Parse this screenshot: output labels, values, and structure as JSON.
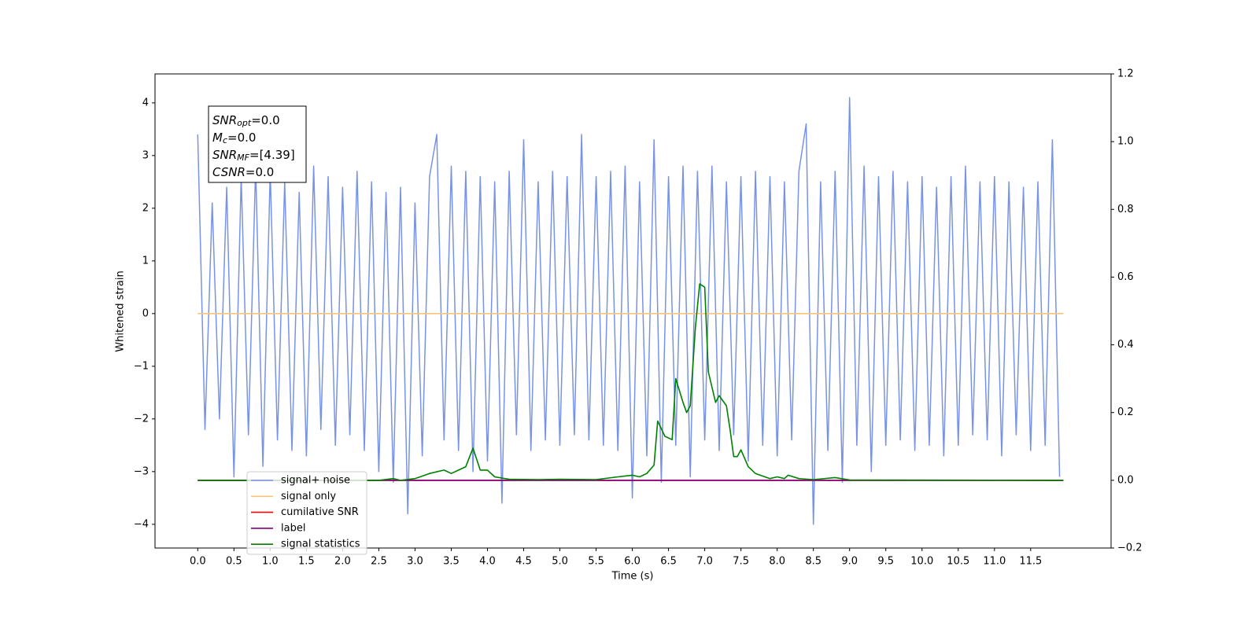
{
  "chart_data": {
    "type": "line",
    "xlabel": "Time (s)",
    "ylabel": "Whitened strain",
    "xlim": [
      -0.59,
      12.61
    ],
    "xticks": [
      {
        "value": 0,
        "label": "0.0"
      },
      0.5,
      {
        "value": 1,
        "label": "1.0"
      },
      1.5,
      {
        "value": 2,
        "label": "2.0"
      },
      2.5,
      {
        "value": 3,
        "label": "3.0"
      },
      3.5,
      {
        "value": 4,
        "label": "4.0"
      },
      4.5,
      {
        "value": 5,
        "label": "5.0"
      },
      5.5,
      {
        "value": 6,
        "label": "6.0"
      },
      6.5,
      {
        "value": 7,
        "label": "7.0"
      },
      7.5,
      {
        "value": 8,
        "label": "8.0"
      },
      8.5,
      {
        "value": 9,
        "label": "9.0"
      },
      9.5,
      {
        "value": 10,
        "label": "10.0"
      },
      10.5,
      {
        "value": 11,
        "label": "11.0"
      },
      11.5
    ],
    "ylim": [
      -4.45,
      4.55
    ],
    "yticks": [
      {
        "value": -4,
        "label": "−4"
      },
      {
        "value": -3,
        "label": "−3"
      },
      {
        "value": -2,
        "label": "−2"
      },
      {
        "value": -1,
        "label": "−1"
      },
      0,
      1,
      2,
      3,
      4
    ],
    "y2lim": [
      -0.2,
      1.2
    ],
    "y2ticks": [
      {
        "value": -0.2,
        "label": "−0.2"
      },
      {
        "value": 0,
        "label": "0.0"
      },
      0.2,
      0.4,
      0.6,
      0.8,
      {
        "value": 1,
        "label": "1.0"
      },
      1.2
    ],
    "legend": "lower left",
    "annotation": [
      {
        "symbol": "SNR",
        "subscript": "opt",
        "text": "=0.0"
      },
      {
        "symbol": "M",
        "subscript": "c",
        "text": "=0.0"
      },
      {
        "symbol": "SNR",
        "subscript": "MF",
        "text": "=[4.39]"
      },
      {
        "symbol": "CSNR",
        "text": "=0.0"
      }
    ],
    "series": [
      {
        "name": "signal+ noise",
        "color": "#7893e6",
        "x": [
          0,
          0.1,
          0.2,
          0.3,
          0.4,
          0.5,
          0.6,
          0.7,
          0.8,
          0.9,
          1,
          1.1,
          1.2,
          1.3,
          1.4,
          1.5,
          1.6,
          1.7,
          1.8,
          1.9,
          2,
          2.1,
          2.2,
          2.3,
          2.4,
          2.5,
          2.6,
          2.7,
          2.8,
          2.9,
          3,
          3.1,
          3.2,
          3.3,
          3.4,
          3.5,
          3.6,
          3.7,
          3.8,
          3.9,
          4,
          4.1,
          4.2,
          4.3,
          4.4,
          4.5,
          4.6,
          4.7,
          4.8,
          4.9,
          5,
          5.1,
          5.2,
          5.3,
          5.4,
          5.5,
          5.6,
          5.7,
          5.8,
          5.9,
          6,
          6.1,
          6.2,
          6.3,
          6.4,
          6.5,
          6.6,
          6.7,
          6.8,
          6.9,
          7,
          7.1,
          7.2,
          7.3,
          7.4,
          7.5,
          7.6,
          7.7,
          7.8,
          7.9,
          8,
          8.1,
          8.2,
          8.3,
          8.4,
          8.5,
          8.6,
          8.7,
          8.8,
          8.9,
          9,
          9.1,
          9.2,
          9.3,
          9.4,
          9.5,
          9.6,
          9.7,
          9.8,
          9.9,
          10,
          10.1,
          10.2,
          10.3,
          10.4,
          10.5,
          10.6,
          10.7,
          10.8,
          10.9,
          11,
          11.1,
          11.2,
          11.3,
          11.4,
          11.5,
          11.6,
          11.7,
          11.8,
          11.9
        ],
        "values": [
          3.4,
          -2.2,
          2.1,
          -2.0,
          2.4,
          -3.1,
          2.6,
          -2.3,
          2.8,
          -2.9,
          2.7,
          -2.4,
          2.5,
          -2.6,
          2.3,
          -2.7,
          2.8,
          -2.2,
          2.6,
          -2.5,
          2.4,
          -2.3,
          2.7,
          -2.6,
          2.5,
          -3.0,
          2.3,
          -3.2,
          2.4,
          -3.8,
          2.1,
          -2.7,
          2.6,
          3.4,
          -2.4,
          2.8,
          -2.6,
          2.7,
          -3.0,
          2.6,
          -2.8,
          2.5,
          -3.6,
          2.7,
          -2.3,
          3.3,
          -2.6,
          2.5,
          -2.4,
          2.7,
          -2.5,
          2.6,
          -2.3,
          3.4,
          -2.4,
          2.6,
          -2.5,
          2.7,
          -2.6,
          2.8,
          -3.5,
          2.5,
          -2.7,
          3.3,
          -3.2,
          2.6,
          -2.5,
          2.8,
          -3.1,
          2.7,
          -2.4,
          2.8,
          -2.6,
          2.5,
          -2.3,
          2.6,
          -2.8,
          2.7,
          -2.5,
          2.6,
          -2.7,
          2.5,
          -2.4,
          2.7,
          3.6,
          -4.0,
          2.5,
          -2.6,
          2.7,
          -3.2,
          4.1,
          -2.5,
          2.8,
          -3.0,
          2.6,
          -2.5,
          2.7,
          -2.4,
          2.5,
          -2.6,
          2.6,
          -2.5,
          2.4,
          -2.7,
          2.6,
          -2.5,
          2.8,
          -2.3,
          2.5,
          -2.4,
          2.6,
          -2.7,
          2.5,
          -2.3,
          2.4,
          -2.6,
          2.5,
          -2.5,
          3.3,
          -3.1
        ]
      },
      {
        "name": "signal only",
        "color": "#f7c47c",
        "x": [
          0,
          11.95
        ],
        "values": [
          0,
          0
        ]
      },
      {
        "name": "cumilative SNR",
        "color": "#ff0000",
        "axis": "y2",
        "x": [
          0,
          11.95
        ],
        "values": [
          0,
          0
        ]
      },
      {
        "name": "label",
        "color": "#800080",
        "axis": "y2",
        "x": [
          0,
          11.95
        ],
        "values": [
          0,
          0
        ]
      },
      {
        "name": "signal statistics",
        "color": "#008000",
        "axis": "y2",
        "x": [
          0,
          2.5,
          2.7,
          2.8,
          3.0,
          3.2,
          3.4,
          3.5,
          3.6,
          3.7,
          3.8,
          3.9,
          4.0,
          4.1,
          4.3,
          4.7,
          5.0,
          5.5,
          5.8,
          6.0,
          6.1,
          6.2,
          6.3,
          6.35,
          6.45,
          6.55,
          6.6,
          6.7,
          6.75,
          6.8,
          6.87,
          6.93,
          7.0,
          7.05,
          7.15,
          7.2,
          7.3,
          7.35,
          7.4,
          7.45,
          7.5,
          7.6,
          7.7,
          7.9,
          8.0,
          8.1,
          8.15,
          8.3,
          8.5,
          8.8,
          9.0,
          11.95
        ],
        "values": [
          0,
          0,
          0.005,
          0,
          0.005,
          0.02,
          0.03,
          0.02,
          0.03,
          0.04,
          0.095,
          0.03,
          0.03,
          0.01,
          0.003,
          0.002,
          0.003,
          0.002,
          0.01,
          0.015,
          0.01,
          0.02,
          0.045,
          0.175,
          0.13,
          0.12,
          0.3,
          0.23,
          0.2,
          0.22,
          0.45,
          0.58,
          0.57,
          0.32,
          0.23,
          0.25,
          0.22,
          0.15,
          0.07,
          0.07,
          0.09,
          0.04,
          0.02,
          0.005,
          0.01,
          0.005,
          0.015,
          0.005,
          0.002,
          0.008,
          0.001,
          0
        ]
      }
    ]
  }
}
